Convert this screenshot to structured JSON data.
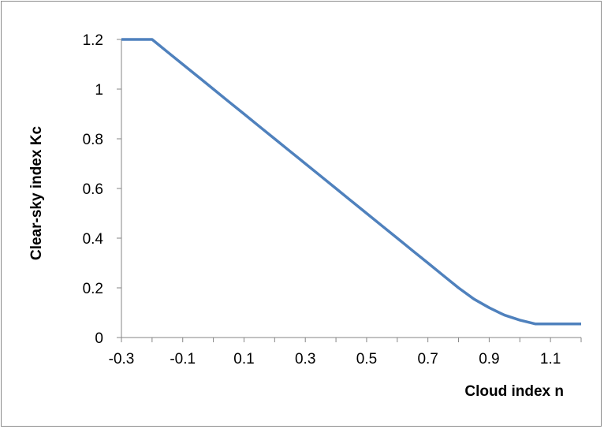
{
  "chart_data": {
    "type": "line",
    "title": "",
    "xlabel": "Cloud index n",
    "ylabel": "Clear-sky index  Kc",
    "xlim": [
      -0.3,
      1.2
    ],
    "ylim": [
      0,
      1.2
    ],
    "x_ticks": [
      -0.3,
      -0.2,
      -0.1,
      0.0,
      0.1,
      0.2,
      0.3,
      0.4,
      0.5,
      0.6,
      0.7,
      0.8,
      0.9,
      1.0,
      1.1,
      1.2
    ],
    "x_tick_labels": [
      {
        "value": -0.3,
        "label": "-0.3"
      },
      {
        "value": -0.1,
        "label": "-0.1"
      },
      {
        "value": 0.1,
        "label": "0.1"
      },
      {
        "value": 0.3,
        "label": "0.3"
      },
      {
        "value": 0.5,
        "label": "0.5"
      },
      {
        "value": 0.7,
        "label": "0.7"
      },
      {
        "value": 0.9,
        "label": "0.9"
      },
      {
        "value": 1.1,
        "label": "1.1"
      }
    ],
    "y_tick_labels": [
      {
        "value": 0,
        "label": "0"
      },
      {
        "value": 0.2,
        "label": "0.2"
      },
      {
        "value": 0.4,
        "label": "0.4"
      },
      {
        "value": 0.6,
        "label": "0.6"
      },
      {
        "value": 0.8,
        "label": "0.8"
      },
      {
        "value": 1.0,
        "label": "1"
      },
      {
        "value": 1.2,
        "label": "1.2"
      }
    ],
    "grid": false,
    "legend": "none",
    "series": [
      {
        "color": "#4f81bd",
        "x": [
          -0.3,
          -0.25,
          -0.2,
          -0.15,
          -0.1,
          -0.05,
          0.0,
          0.05,
          0.1,
          0.15,
          0.2,
          0.25,
          0.3,
          0.35,
          0.4,
          0.45,
          0.5,
          0.55,
          0.6,
          0.65,
          0.7,
          0.75,
          0.8,
          0.85,
          0.9,
          0.95,
          1.0,
          1.05,
          1.1,
          1.15,
          1.2
        ],
        "y": [
          1.2,
          1.2,
          1.2,
          1.15,
          1.1,
          1.05,
          1.0,
          0.95,
          0.9,
          0.85,
          0.8,
          0.75,
          0.7,
          0.65,
          0.6,
          0.55,
          0.5,
          0.45,
          0.4,
          0.35,
          0.3,
          0.25,
          0.2,
          0.155,
          0.12,
          0.09,
          0.07,
          0.055,
          0.055,
          0.055,
          0.055
        ]
      }
    ]
  }
}
